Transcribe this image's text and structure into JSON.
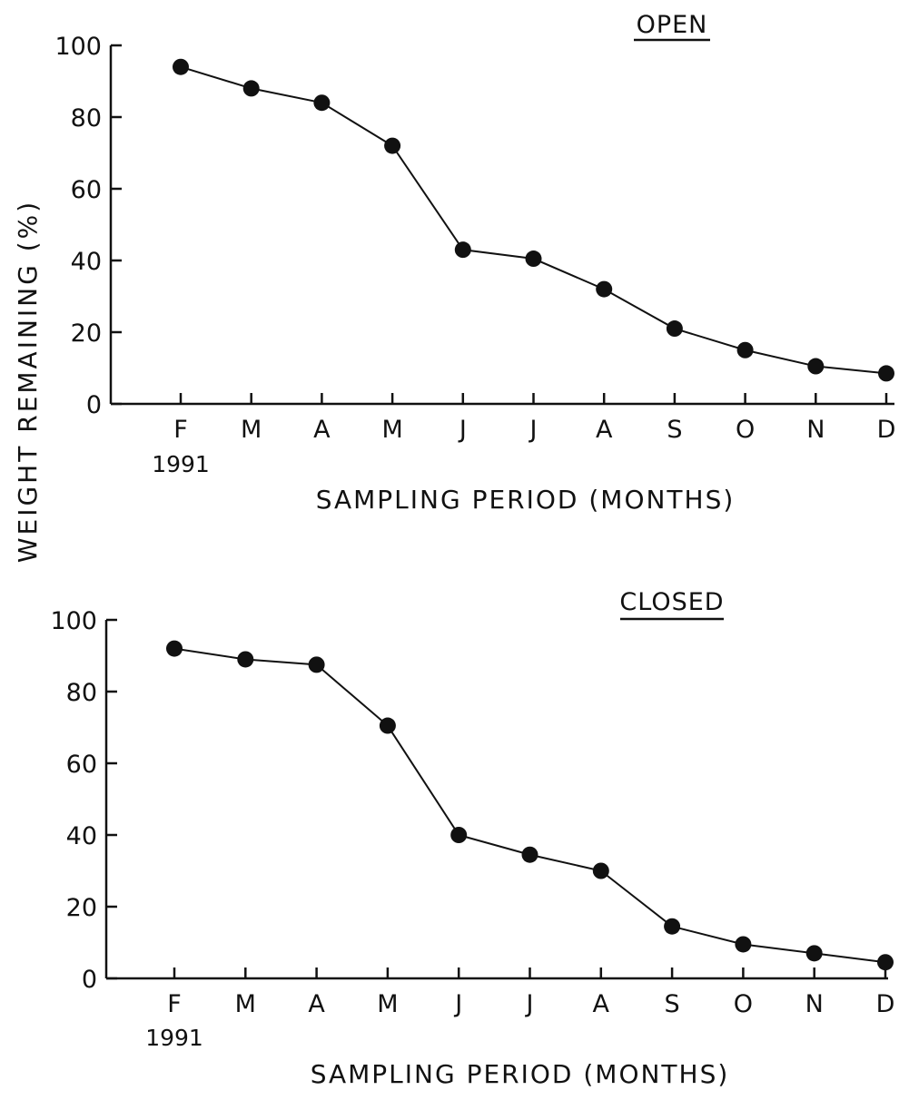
{
  "ylabel": "WEIGHT   REMAINING  (%)",
  "chart_data": [
    {
      "type": "line",
      "title": "OPEN",
      "categories": [
        "F",
        "M",
        "A",
        "M",
        "J",
        "J",
        "A",
        "S",
        "O",
        "N",
        "D"
      ],
      "year_label": "1991",
      "xlabel": "SAMPLING  PERIOD (MONTHS)",
      "ylabel": "WEIGHT REMAINING (%)",
      "ylim": [
        0,
        100
      ],
      "yticks": [
        0,
        20,
        40,
        60,
        80,
        100
      ],
      "grid": false,
      "marker": "filled-circle",
      "values": [
        94,
        88,
        84,
        72,
        43,
        40.5,
        32,
        21,
        15,
        10.5,
        8.5
      ]
    },
    {
      "type": "line",
      "title": "CLOSED",
      "categories": [
        "F",
        "M",
        "A",
        "M",
        "J",
        "J",
        "A",
        "S",
        "O",
        "N",
        "D"
      ],
      "year_label": "1991",
      "xlabel": "SAMPLING  PERIOD (MONTHS)",
      "ylabel": "WEIGHT REMAINING (%)",
      "ylim": [
        0,
        100
      ],
      "yticks": [
        0,
        20,
        40,
        60,
        80,
        100
      ],
      "grid": false,
      "marker": "filled-circle",
      "values": [
        92,
        89,
        87.5,
        70.5,
        40,
        34.5,
        30,
        14.5,
        9.5,
        7,
        4.5
      ]
    }
  ]
}
